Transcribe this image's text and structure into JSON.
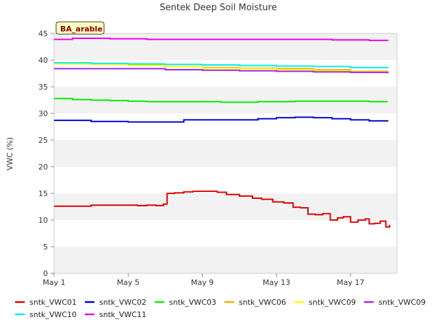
{
  "chart_data": {
    "type": "line",
    "title": "Sentek Deep Soil Moisture",
    "ylabel": "VWC (%)",
    "xlabel": "",
    "station_label": "BA_arable",
    "ylim": [
      0,
      45
    ],
    "xlim": [
      1,
      19.5
    ],
    "yticks": [
      0,
      5,
      10,
      15,
      20,
      25,
      30,
      35,
      40,
      45
    ],
    "xticks": [
      {
        "value": 1,
        "label": "May 1"
      },
      {
        "value": 5,
        "label": "May 5"
      },
      {
        "value": 9,
        "label": "May 9"
      },
      {
        "value": 13,
        "label": "May 13"
      },
      {
        "value": 17,
        "label": "May 17"
      }
    ],
    "grid": "horizontal alternating bands",
    "legend_position": "bottom",
    "series": [
      {
        "name": "sntk_VWC01",
        "color": "#dd0000",
        "x": [
          1,
          2,
          3,
          4,
          5,
          5.5,
          6,
          6.5,
          6.9,
          7.1,
          7.5,
          8,
          8.5,
          9,
          9.8,
          10.3,
          11,
          11.7,
          12.2,
          12.8,
          13.4,
          13.9,
          14.3,
          14.7,
          15.1,
          15.5,
          15.9,
          16.3,
          16.6,
          17,
          17.4,
          17.8,
          18,
          18.3,
          18.6,
          18.9,
          19.1
        ],
        "y": [
          12.6,
          12.6,
          12.8,
          12.8,
          12.8,
          12.7,
          12.8,
          12.7,
          13.0,
          15.0,
          15.1,
          15.3,
          15.4,
          15.4,
          15.2,
          14.8,
          14.5,
          14.1,
          13.9,
          13.4,
          13.2,
          12.4,
          12.3,
          11.1,
          11.0,
          11.2,
          10.0,
          10.4,
          10.6,
          9.6,
          10.0,
          10.2,
          9.3,
          9.4,
          9.8,
          8.7,
          9.1
        ]
      },
      {
        "name": "sntk_VWC02",
        "color": "#0000cc",
        "x": [
          1,
          3,
          5,
          7,
          8,
          10,
          12,
          13,
          14,
          15,
          16,
          17,
          18,
          19
        ],
        "y": [
          28.7,
          28.5,
          28.4,
          28.4,
          28.8,
          28.8,
          29.0,
          29.2,
          29.3,
          29.2,
          29.0,
          28.8,
          28.6,
          28.5
        ]
      },
      {
        "name": "sntk_VWC03",
        "color": "#00ee00",
        "x": [
          1,
          2,
          3,
          4,
          5,
          6,
          8,
          10,
          12,
          14,
          16,
          18,
          19
        ],
        "y": [
          32.8,
          32.6,
          32.5,
          32.4,
          32.3,
          32.2,
          32.2,
          32.1,
          32.2,
          32.3,
          32.3,
          32.2,
          32.2
        ]
      },
      {
        "name": "sntk_VWC06",
        "color": "#ffa500",
        "x": [
          1,
          3,
          5,
          7,
          9,
          11,
          13,
          15,
          17,
          19
        ],
        "y": [
          39.4,
          39.3,
          39.1,
          38.8,
          38.6,
          38.5,
          38.4,
          38.2,
          37.9,
          37.6
        ]
      },
      {
        "name": "sntk_VWC09",
        "color": "#ffff00",
        "x": [
          1,
          3,
          5,
          7,
          9,
          11,
          13,
          15,
          17,
          19
        ],
        "y": [
          39.3,
          39.2,
          39.0,
          38.8,
          38.5,
          38.4,
          38.2,
          38.0,
          37.8,
          37.5
        ]
      },
      {
        "name": "sntk_VWC09",
        "color": "#a020f0",
        "x": [
          1,
          3,
          5,
          7,
          9,
          11,
          13,
          15,
          17,
          19
        ],
        "y": [
          38.4,
          38.4,
          38.4,
          38.2,
          38.1,
          38.0,
          37.9,
          37.8,
          37.7,
          37.5
        ]
      },
      {
        "name": "sntk_VWC10",
        "color": "#00eeee",
        "x": [
          1,
          3,
          5,
          7,
          9,
          11,
          13,
          15,
          17,
          19
        ],
        "y": [
          39.5,
          39.4,
          39.3,
          39.2,
          39.1,
          39.0,
          38.9,
          38.8,
          38.6,
          38.5
        ]
      },
      {
        "name": "sntk_VWC11",
        "color": "#ee00ee",
        "x": [
          1,
          2,
          4,
          6,
          8,
          10,
          12,
          14,
          16,
          18,
          19
        ],
        "y": [
          43.9,
          44.1,
          44.0,
          43.9,
          43.9,
          43.9,
          43.9,
          43.9,
          43.8,
          43.7,
          43.6
        ]
      }
    ]
  }
}
